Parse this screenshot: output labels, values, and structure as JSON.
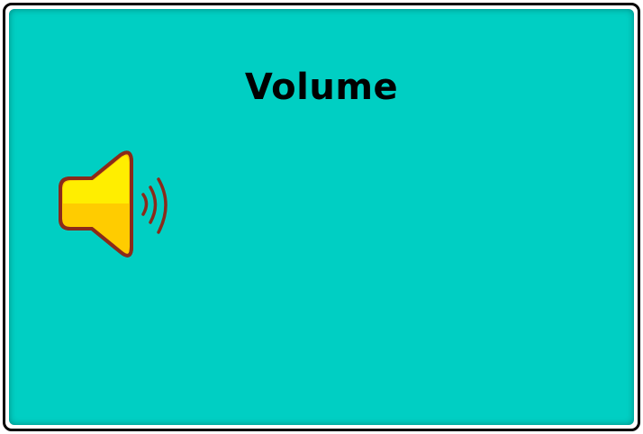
{
  "page": {
    "title": "Volume",
    "icon": "speaker-volume-icon"
  },
  "colors": {
    "panel_background": "#00cfc3",
    "speaker_fill_top": "#ffee00",
    "speaker_fill_bottom": "#ffcc00",
    "speaker_outline": "#8b2a1a"
  }
}
